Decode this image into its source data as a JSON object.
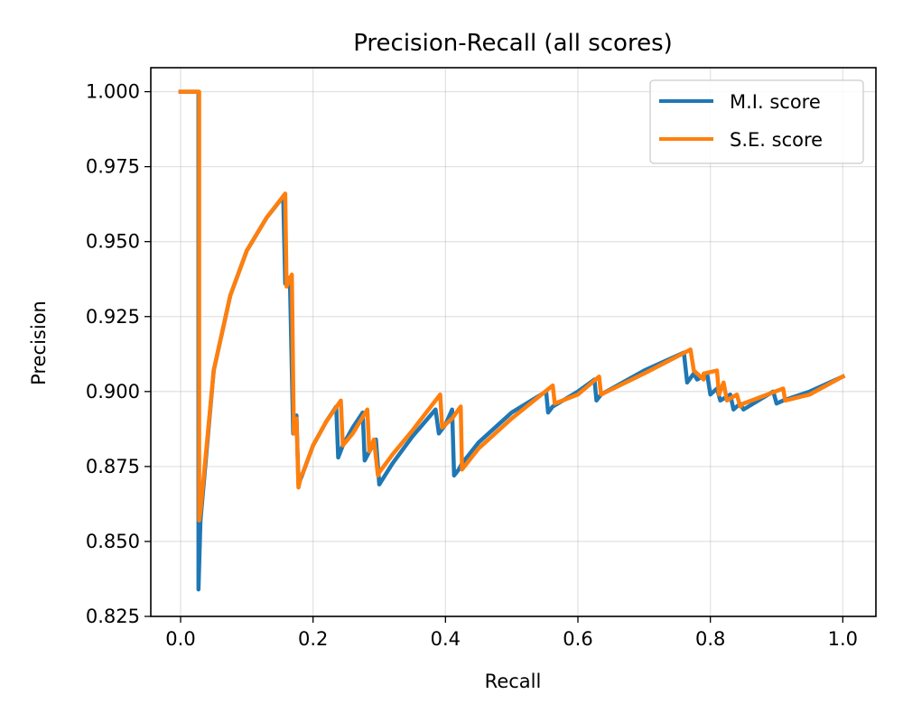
{
  "chart_data": {
    "type": "line",
    "title": "Precision-Recall (all scores)",
    "xlabel": "Recall",
    "ylabel": "Precision",
    "xlim": [
      -0.045,
      1.05
    ],
    "ylim": [
      0.825,
      1.008
    ],
    "xticks": [
      "0.0",
      "0.2",
      "0.4",
      "0.6",
      "0.8",
      "1.0"
    ],
    "xtick_values": [
      0.0,
      0.2,
      0.4,
      0.6,
      0.8,
      1.0
    ],
    "yticks": [
      "0.825",
      "0.850",
      "0.875",
      "0.900",
      "0.925",
      "0.950",
      "0.975",
      "1.000"
    ],
    "ytick_values": [
      0.825,
      0.85,
      0.875,
      0.9,
      0.925,
      0.95,
      0.975,
      1.0
    ],
    "grid": true,
    "legend_position": "upper right",
    "colors": {
      "M.I. score": "#1f77b4",
      "S.E. score": "#ff7f0e"
    },
    "series": [
      {
        "name": "M.I. score",
        "color": "#1f77b4",
        "x": [
          0.0,
          0.027,
          0.027,
          0.03,
          0.05,
          0.075,
          0.1,
          0.13,
          0.155,
          0.158,
          0.165,
          0.17,
          0.175,
          0.178,
          0.185,
          0.2,
          0.22,
          0.235,
          0.238,
          0.245,
          0.26,
          0.275,
          0.278,
          0.285,
          0.295,
          0.3,
          0.32,
          0.35,
          0.385,
          0.39,
          0.4,
          0.41,
          0.413,
          0.42,
          0.425,
          0.45,
          0.5,
          0.552,
          0.555,
          0.562,
          0.6,
          0.625,
          0.628,
          0.635,
          0.7,
          0.76,
          0.765,
          0.775,
          0.78,
          0.795,
          0.8,
          0.81,
          0.815,
          0.83,
          0.835,
          0.845,
          0.85,
          0.895,
          0.9,
          0.91,
          0.95,
          1.0
        ],
        "y": [
          1.0,
          1.0,
          0.834,
          0.857,
          0.907,
          0.932,
          0.947,
          0.958,
          0.965,
          0.936,
          0.938,
          0.886,
          0.892,
          0.869,
          0.873,
          0.882,
          0.89,
          0.895,
          0.878,
          0.882,
          0.888,
          0.893,
          0.877,
          0.88,
          0.884,
          0.869,
          0.876,
          0.885,
          0.894,
          0.886,
          0.889,
          0.894,
          0.872,
          0.874,
          0.876,
          0.883,
          0.893,
          0.9,
          0.893,
          0.895,
          0.9,
          0.904,
          0.897,
          0.899,
          0.907,
          0.913,
          0.903,
          0.906,
          0.904,
          0.906,
          0.899,
          0.901,
          0.897,
          0.899,
          0.894,
          0.896,
          0.894,
          0.9,
          0.896,
          0.897,
          0.9,
          0.905
        ]
      },
      {
        "name": "S.E. score",
        "color": "#ff7f0e",
        "x": [
          0.0,
          0.018,
          0.018,
          0.028,
          0.028,
          0.03,
          0.05,
          0.075,
          0.1,
          0.13,
          0.158,
          0.16,
          0.168,
          0.171,
          0.175,
          0.178,
          0.182,
          0.185,
          0.2,
          0.22,
          0.242,
          0.245,
          0.26,
          0.282,
          0.285,
          0.292,
          0.298,
          0.3,
          0.32,
          0.35,
          0.392,
          0.395,
          0.41,
          0.423,
          0.425,
          0.45,
          0.5,
          0.562,
          0.565,
          0.6,
          0.632,
          0.635,
          0.7,
          0.77,
          0.775,
          0.79,
          0.79,
          0.81,
          0.813,
          0.82,
          0.825,
          0.84,
          0.845,
          0.85,
          0.91,
          0.913,
          0.95,
          1.0
        ],
        "y": [
          1.0,
          1.0,
          1.0,
          1.0,
          0.857,
          0.86,
          0.907,
          0.932,
          0.947,
          0.958,
          0.966,
          0.935,
          0.939,
          0.886,
          0.891,
          0.868,
          0.872,
          0.873,
          0.882,
          0.89,
          0.897,
          0.882,
          0.886,
          0.894,
          0.88,
          0.884,
          0.872,
          0.873,
          0.879,
          0.887,
          0.899,
          0.888,
          0.891,
          0.895,
          0.874,
          0.881,
          0.891,
          0.902,
          0.896,
          0.899,
          0.905,
          0.899,
          0.906,
          0.914,
          0.907,
          0.904,
          0.906,
          0.907,
          0.899,
          0.903,
          0.897,
          0.899,
          0.895,
          0.896,
          0.901,
          0.897,
          0.899,
          0.905
        ]
      }
    ]
  }
}
